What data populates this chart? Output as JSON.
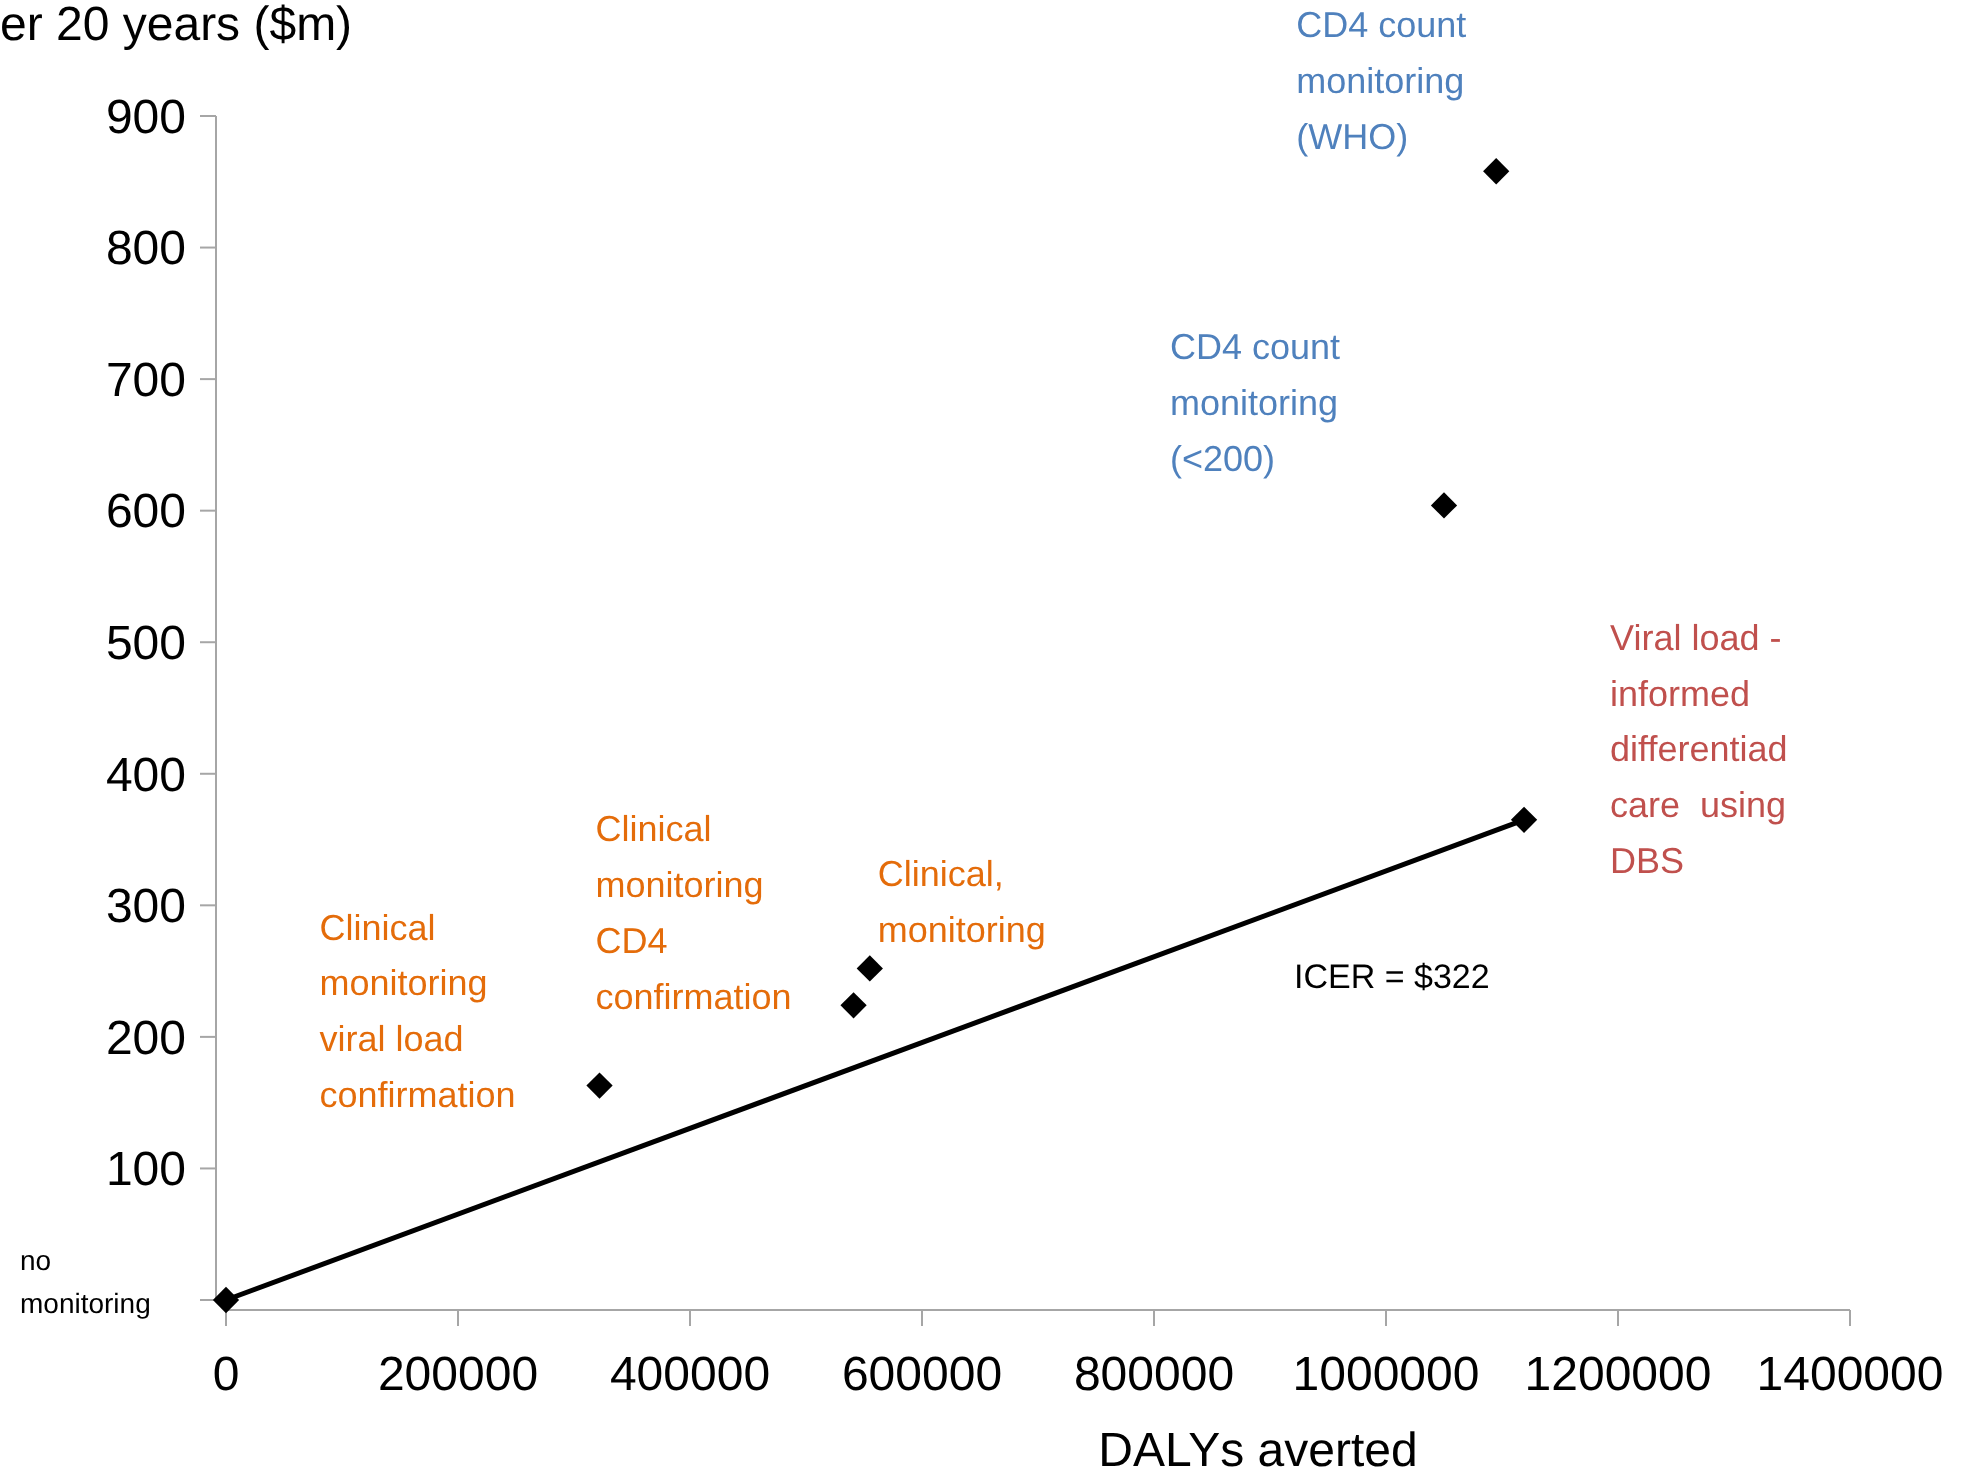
{
  "chart_data": {
    "type": "scatter",
    "ylabel": "er 20 years ($m)",
    "xlabel": "DALYs averted",
    "xlim": [
      0,
      1400000
    ],
    "xticks": [
      0,
      200000,
      400000,
      600000,
      800000,
      1000000,
      1200000,
      1400000
    ],
    "ylim": [
      0,
      900
    ],
    "yticks": [
      {
        "value": 0,
        "label": null
      },
      100,
      200,
      300,
      400,
      500,
      600,
      700,
      800,
      900
    ],
    "grid": false,
    "marker": "diamond",
    "series": [
      {
        "color": "#000000",
        "x": [
          0,
          322000,
          541000,
          555000,
          1050000,
          1095000,
          1119000
        ],
        "values": [
          0,
          163,
          224,
          252,
          604,
          858,
          365
        ]
      },
      {
        "type": "line",
        "color": "#000000",
        "line_style": "solid",
        "marker": "none",
        "x": [
          0,
          1119000
        ],
        "values": [
          0,
          365
        ]
      }
    ],
    "annotations": [
      {
        "text": "no\nmonitoring",
        "x": 0,
        "y": 0
      },
      {
        "text": "Clinical\nmonitoring\nviral load\nconfirmation",
        "x": 322000,
        "y": 163
      },
      {
        "text": "Clinical\nmonitoring\nCD4\nconfirmation",
        "x": 541000,
        "y": 224
      },
      {
        "text": "Clinical,\nmonitoring",
        "x": 555000,
        "y": 252
      },
      {
        "text": "CD4 count\nmonitoring\n(<200)",
        "x": 1050000,
        "y": 604
      },
      {
        "text": "CD4 count\nmonitoring\n(WHO)",
        "x": 1095000,
        "y": 858
      },
      {
        "text": "Viral load -\ninformed\ndifferentiad\ncare  using\nDBS",
        "x": 1119000,
        "y": 365
      },
      "ICER = $322"
    ]
  }
}
